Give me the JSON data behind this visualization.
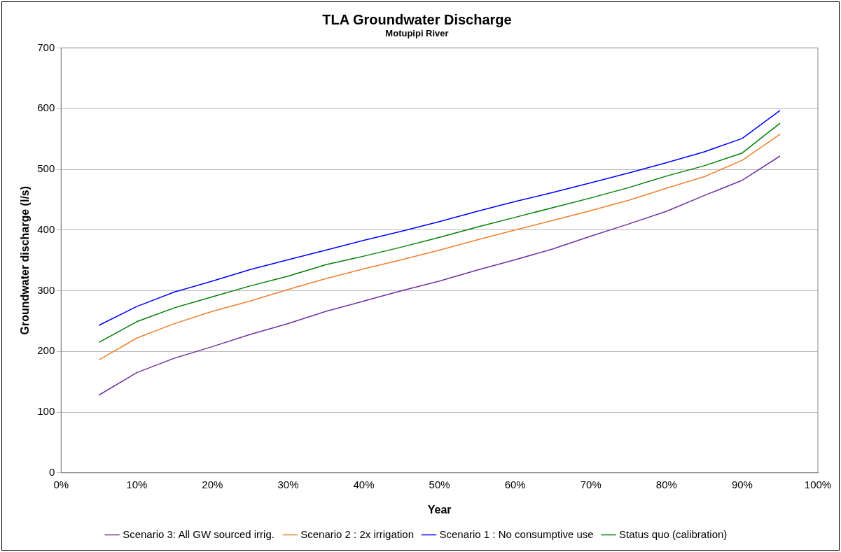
{
  "chart_data": {
    "type": "line",
    "title": "TLA Groundwater Discharge",
    "subtitle": "Motupipi River",
    "xlabel": "Year",
    "ylabel": "Groundwater discharge (l/s)",
    "x": [
      5,
      10,
      15,
      20,
      25,
      30,
      35,
      40,
      45,
      50,
      55,
      60,
      65,
      70,
      75,
      80,
      85,
      90,
      95
    ],
    "series": [
      {
        "name": "Scenario 3: All GW sourced irrig.",
        "color": "#7030a0",
        "values": [
          128,
          165,
          189,
          208,
          228,
          246,
          266,
          283,
          300,
          316,
          334,
          351,
          369,
          390,
          410,
          431,
          457,
          482,
          522
        ]
      },
      {
        "name": "Scenario 2 : 2x irrigation",
        "color": "#f07f30",
        "values": [
          186,
          222,
          246,
          266,
          283,
          302,
          320,
          336,
          351,
          367,
          384,
          400,
          416,
          432,
          449,
          469,
          488,
          515,
          558
        ]
      },
      {
        "name": "Scenario 1 : No consumptive use",
        "color": "#0000ff",
        "values": [
          243,
          274,
          298,
          316,
          335,
          351,
          367,
          383,
          398,
          414,
          431,
          447,
          462,
          478,
          494,
          511,
          529,
          551,
          597
        ]
      },
      {
        "name": "Status quo (calibration)",
        "color": "#008000",
        "values": [
          215,
          249,
          272,
          290,
          308,
          324,
          343,
          357,
          372,
          388,
          405,
          421,
          437,
          453,
          470,
          489,
          506,
          527,
          576
        ]
      }
    ],
    "xlim": [
      0,
      100
    ],
    "xticks": [
      {
        "value": 0,
        "label": "0%"
      },
      {
        "value": 10,
        "label": "10%"
      },
      {
        "value": 20,
        "label": "20%"
      },
      {
        "value": 30,
        "label": "30%"
      },
      {
        "value": 40,
        "label": "40%"
      },
      {
        "value": 50,
        "label": "50%"
      },
      {
        "value": 60,
        "label": "60%"
      },
      {
        "value": 70,
        "label": "70%"
      },
      {
        "value": 80,
        "label": "80%"
      },
      {
        "value": 90,
        "label": "90%"
      },
      {
        "value": 100,
        "label": "100%"
      }
    ],
    "ylim": [
      0,
      700
    ],
    "yticks": [
      0,
      100,
      200,
      300,
      400,
      500,
      600,
      700
    ],
    "grid": "y",
    "legend": "bottom",
    "marker": "none",
    "line_style": "solid"
  }
}
